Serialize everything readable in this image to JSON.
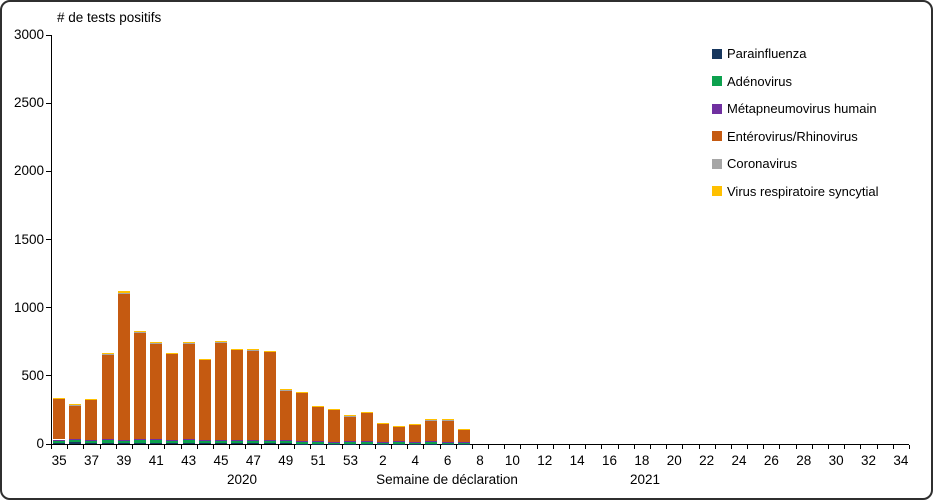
{
  "chart_data": {
    "type": "bar",
    "stacked": true,
    "title": "# de tests positifs",
    "xlabel": "Semaine de déclaration",
    "ylabel": "",
    "ylim": [
      0,
      3000
    ],
    "yticks": [
      0,
      500,
      1000,
      1500,
      2000,
      2500,
      3000
    ],
    "grid": false,
    "legend_position": "right",
    "year_groups": [
      {
        "label": "2020",
        "weeks": "35-53"
      },
      {
        "label": "2021",
        "weeks": "1-34"
      }
    ],
    "categories": [
      "35",
      "36",
      "37",
      "38",
      "39",
      "40",
      "41",
      "42",
      "43",
      "44",
      "45",
      "46",
      "47",
      "48",
      "49",
      "50",
      "51",
      "52",
      "53",
      "1",
      "2",
      "3",
      "4",
      "5",
      "6",
      "7",
      "8",
      "9",
      "10",
      "11",
      "12",
      "13",
      "14",
      "15",
      "16",
      "17",
      "18",
      "19",
      "20",
      "21",
      "22",
      "23",
      "24",
      "25",
      "26",
      "27",
      "28",
      "29",
      "30",
      "31",
      "32",
      "33",
      "34"
    ],
    "xtick_labels": [
      "35",
      "",
      "37",
      "",
      "39",
      "",
      "41",
      "",
      "43",
      "",
      "45",
      "",
      "47",
      "",
      "49",
      "",
      "51",
      "",
      "53",
      "",
      "2",
      "",
      "4",
      "",
      "6",
      "",
      "8",
      "",
      "10",
      "",
      "12",
      "",
      "14",
      "",
      "16",
      "",
      "18",
      "",
      "20",
      "",
      "22",
      "",
      "24",
      "",
      "26",
      "",
      "28",
      "",
      "30",
      "",
      "32",
      "",
      "34"
    ],
    "series": [
      {
        "name": "Parainfluenza",
        "color": "#17375E",
        "values": [
          8,
          12,
          10,
          6,
          6,
          4,
          6,
          5,
          5,
          4,
          6,
          5,
          5,
          4,
          4,
          3,
          3,
          3,
          2,
          2,
          2,
          2,
          2,
          2,
          2,
          2,
          0,
          0,
          0,
          0,
          0,
          0,
          0,
          0,
          0,
          0,
          0,
          0,
          0,
          0,
          0,
          0,
          0,
          0,
          0,
          0,
          0,
          0,
          0,
          0,
          0,
          0,
          0
        ]
      },
      {
        "name": "Adénovirus",
        "color": "#0CA14E",
        "values": [
          22,
          18,
          15,
          28,
          15,
          28,
          20,
          22,
          25,
          18,
          20,
          18,
          20,
          22,
          18,
          15,
          14,
          12,
          15,
          20,
          12,
          14,
          10,
          16,
          14,
          12,
          0,
          0,
          0,
          0,
          0,
          0,
          0,
          0,
          0,
          0,
          0,
          0,
          0,
          0,
          0,
          0,
          0,
          0,
          0,
          0,
          0,
          0,
          0,
          0,
          0,
          0,
          0
        ]
      },
      {
        "name": "Métapneumovirus humain",
        "color": "#7030A0",
        "values": [
          3,
          4,
          5,
          4,
          8,
          5,
          8,
          5,
          6,
          5,
          6,
          5,
          5,
          6,
          4,
          4,
          3,
          3,
          3,
          3,
          3,
          3,
          3,
          2,
          2,
          2,
          0,
          0,
          0,
          0,
          0,
          0,
          0,
          0,
          0,
          0,
          0,
          0,
          0,
          0,
          0,
          0,
          0,
          0,
          0,
          0,
          0,
          0,
          0,
          0,
          0,
          0,
          0
        ]
      },
      {
        "name": "Entérovirus/Rhinovirus",
        "color": "#C55A11",
        "values": [
          300,
          250,
          295,
          620,
          1070,
          780,
          705,
          628,
          700,
          590,
          712,
          662,
          655,
          643,
          366,
          355,
          253,
          236,
          184,
          204,
          128,
          108,
          127,
          154,
          156,
          90,
          0,
          0,
          0,
          0,
          0,
          0,
          0,
          0,
          0,
          0,
          0,
          0,
          0,
          0,
          0,
          0,
          0,
          0,
          0,
          0,
          0,
          0,
          0,
          0,
          0,
          0,
          0
        ]
      },
      {
        "name": "Coronavirus",
        "color": "#A6A6A6",
        "values": [
          3,
          3,
          3,
          3,
          10,
          6,
          5,
          4,
          4,
          4,
          5,
          4,
          4,
          4,
          3,
          3,
          3,
          3,
          3,
          3,
          8,
          6,
          6,
          4,
          4,
          2,
          0,
          0,
          0,
          0,
          0,
          0,
          0,
          0,
          0,
          0,
          0,
          0,
          0,
          0,
          0,
          0,
          0,
          0,
          0,
          0,
          0,
          0,
          0,
          0,
          0,
          0,
          0
        ]
      },
      {
        "name": "Virus respiratoire syncytial",
        "color": "#FFC000",
        "values": [
          4,
          3,
          2,
          4,
          16,
          7,
          6,
          6,
          5,
          4,
          6,
          6,
          6,
          6,
          5,
          5,
          4,
          3,
          3,
          3,
          2,
          2,
          2,
          2,
          2,
          2,
          0,
          0,
          0,
          0,
          0,
          0,
          0,
          0,
          0,
          0,
          0,
          0,
          0,
          0,
          0,
          0,
          0,
          0,
          0,
          0,
          0,
          0,
          0,
          0,
          0,
          0,
          0
        ]
      }
    ]
  }
}
